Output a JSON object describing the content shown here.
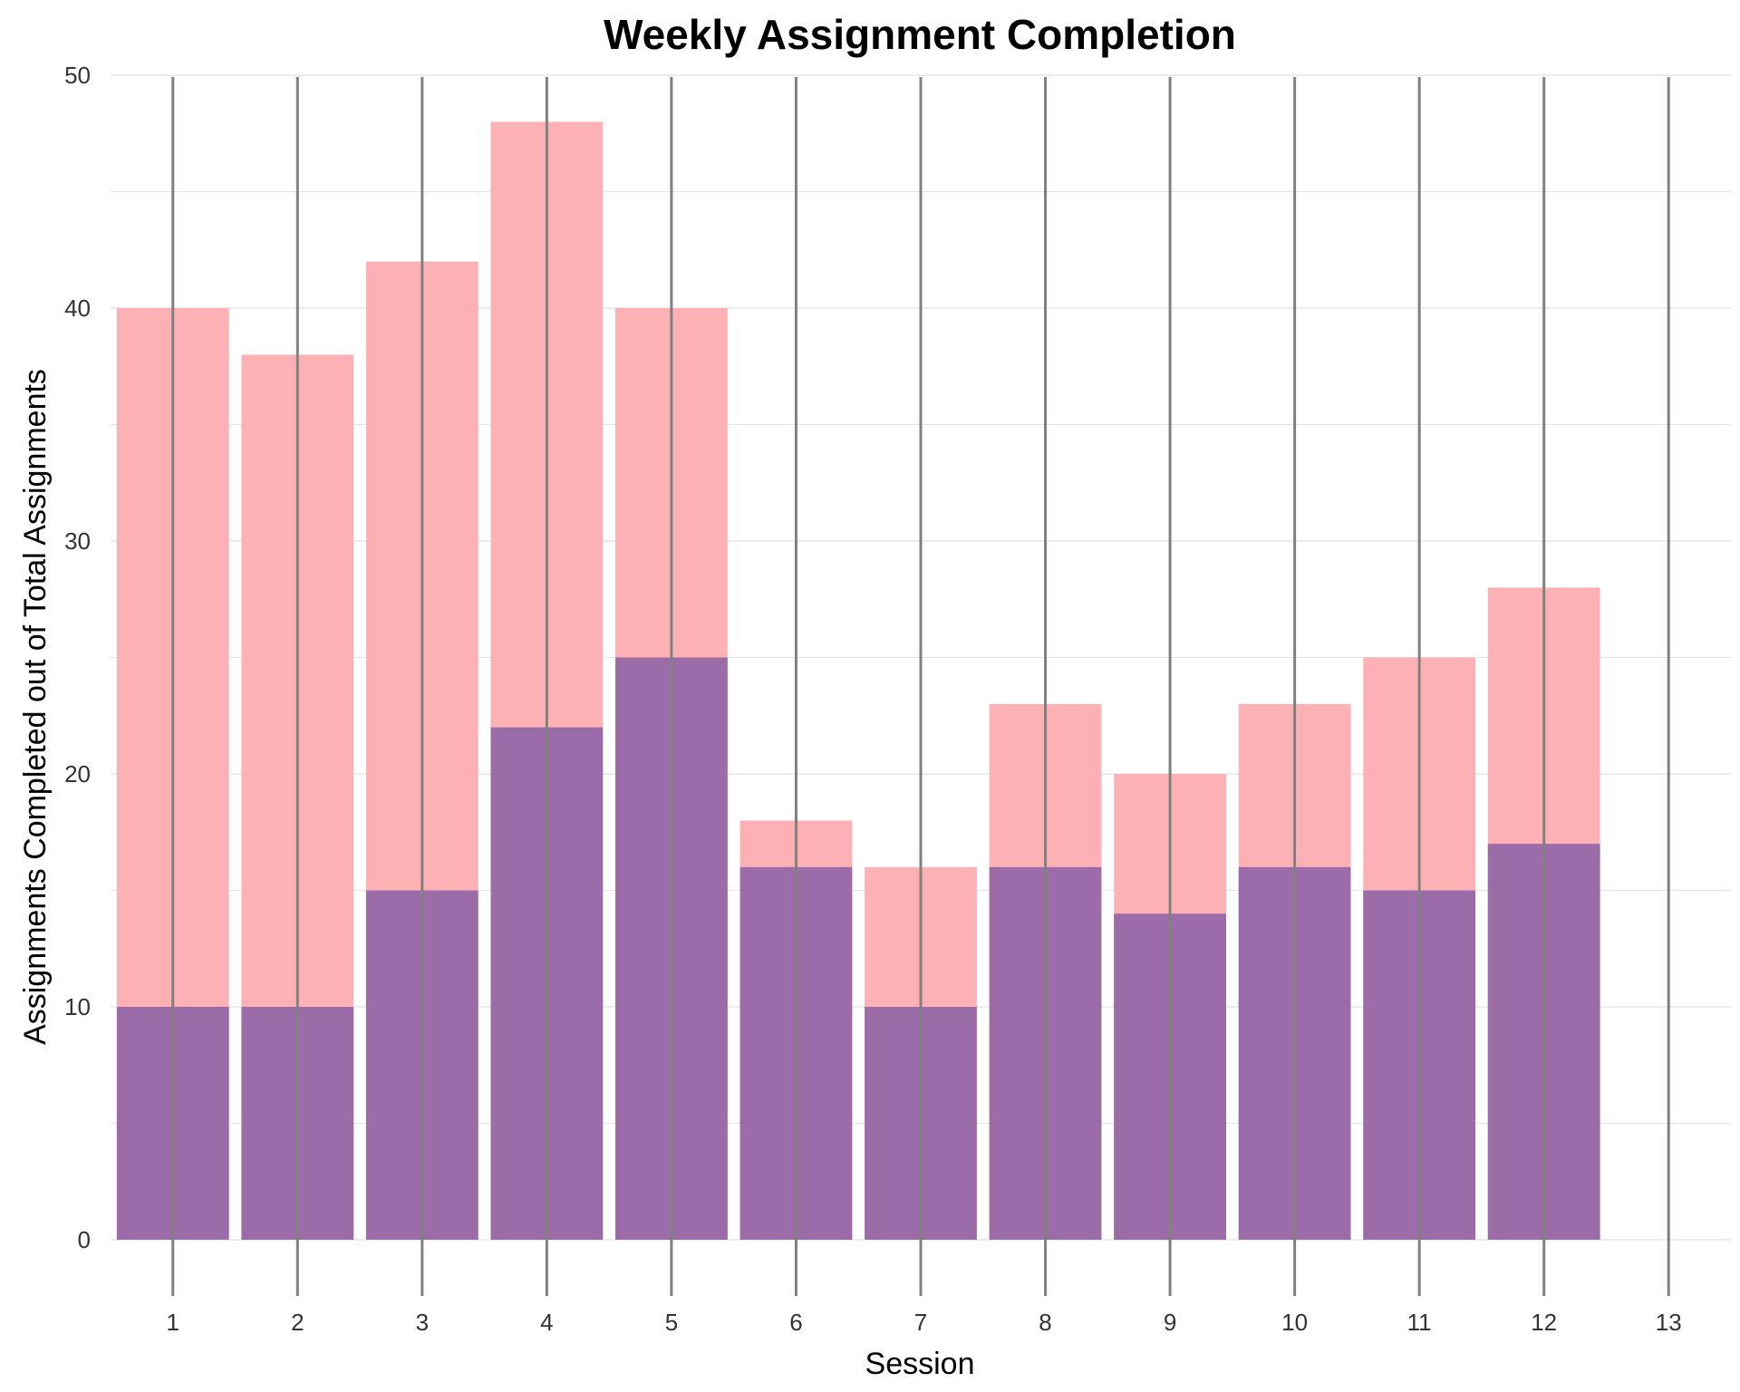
{
  "chart_data": {
    "type": "bar",
    "title": "Weekly Assignment Completion",
    "xlabel": "Session",
    "ylabel": "Assignments Completed out of Total Assignments",
    "x_ticks": [
      1,
      2,
      3,
      4,
      5,
      6,
      7,
      8,
      9,
      10,
      11,
      12,
      13
    ],
    "y_ticks": [
      0,
      10,
      20,
      30,
      40,
      50
    ],
    "ylim": [
      0,
      50
    ],
    "xlim": [
      0.5,
      13.5
    ],
    "grid": true,
    "legend": "none",
    "categories": [
      1,
      2,
      3,
      4,
      5,
      6,
      7,
      8,
      9,
      10,
      11,
      12
    ],
    "series": [
      {
        "values": [
          40,
          38,
          42,
          48,
          40,
          18,
          16,
          23,
          20,
          23,
          25,
          28
        ],
        "color": "#fdb1b4"
      },
      {
        "values": [
          10,
          10,
          15,
          22,
          25,
          16,
          10,
          16,
          14,
          16,
          15,
          17
        ],
        "color": "#9c6ca8"
      }
    ],
    "vertical_lines_x": [
      1,
      2,
      3,
      4,
      5,
      6,
      7,
      8,
      9,
      10,
      11,
      12,
      13
    ],
    "vertical_line_color": "#808080"
  }
}
